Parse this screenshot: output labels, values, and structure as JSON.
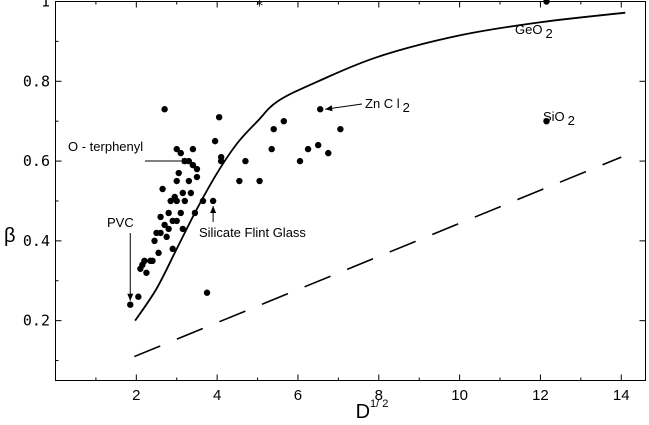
{
  "chart_data": {
    "type": "scatter",
    "title": "",
    "xlabel": "D^1/2",
    "xlabel_base": "D",
    "xlabel_sup": "1/ 2",
    "ylabel": "β",
    "xlim": [
      0,
      14.6
    ],
    "ylim": [
      0.05,
      1.0
    ],
    "x_ticks": [
      2,
      4,
      6,
      8,
      10,
      12,
      14
    ],
    "y_ticks": [
      0.2,
      0.4,
      0.6,
      0.8,
      1.0
    ],
    "y_tick_labels": [
      "0.2",
      "0.4",
      "0.6",
      "0.8",
      "1"
    ],
    "grid": false,
    "points": [
      {
        "x": 1.85,
        "y": 0.24
      },
      {
        "x": 2.05,
        "y": 0.26
      },
      {
        "x": 2.1,
        "y": 0.33
      },
      {
        "x": 2.15,
        "y": 0.34
      },
      {
        "x": 2.2,
        "y": 0.35
      },
      {
        "x": 2.25,
        "y": 0.32
      },
      {
        "x": 2.35,
        "y": 0.35
      },
      {
        "x": 2.4,
        "y": 0.35
      },
      {
        "x": 2.45,
        "y": 0.4
      },
      {
        "x": 2.5,
        "y": 0.42
      },
      {
        "x": 2.55,
        "y": 0.37
      },
      {
        "x": 2.6,
        "y": 0.42
      },
      {
        "x": 2.6,
        "y": 0.46
      },
      {
        "x": 2.65,
        "y": 0.53
      },
      {
        "x": 2.7,
        "y": 0.73
      },
      {
        "x": 2.7,
        "y": 0.44
      },
      {
        "x": 2.75,
        "y": 0.41
      },
      {
        "x": 2.8,
        "y": 0.43
      },
      {
        "x": 2.8,
        "y": 0.47
      },
      {
        "x": 2.85,
        "y": 0.5
      },
      {
        "x": 2.9,
        "y": 0.38
      },
      {
        "x": 2.9,
        "y": 0.45
      },
      {
        "x": 2.95,
        "y": 0.51
      },
      {
        "x": 3.0,
        "y": 0.45
      },
      {
        "x": 3.0,
        "y": 0.5
      },
      {
        "x": 3.0,
        "y": 0.55
      },
      {
        "x": 3.0,
        "y": 0.63
      },
      {
        "x": 3.05,
        "y": 0.57
      },
      {
        "x": 3.1,
        "y": 0.62
      },
      {
        "x": 3.1,
        "y": 0.47
      },
      {
        "x": 3.15,
        "y": 0.52
      },
      {
        "x": 3.15,
        "y": 0.43
      },
      {
        "x": 3.2,
        "y": 0.5
      },
      {
        "x": 3.2,
        "y": 0.6
      },
      {
        "x": 3.3,
        "y": 0.55
      },
      {
        "x": 3.3,
        "y": 0.6
      },
      {
        "x": 3.35,
        "y": 0.52
      },
      {
        "x": 3.4,
        "y": 0.59
      },
      {
        "x": 3.4,
        "y": 0.63
      },
      {
        "x": 3.45,
        "y": 0.47
      },
      {
        "x": 3.5,
        "y": 0.56
      },
      {
        "x": 3.5,
        "y": 0.58
      },
      {
        "x": 3.65,
        "y": 0.5
      },
      {
        "x": 3.75,
        "y": 0.27
      },
      {
        "x": 3.9,
        "y": 0.5
      },
      {
        "x": 3.95,
        "y": 0.65
      },
      {
        "x": 4.05,
        "y": 0.71
      },
      {
        "x": 4.1,
        "y": 0.6
      },
      {
        "x": 4.1,
        "y": 0.61
      },
      {
        "x": 4.55,
        "y": 0.55
      },
      {
        "x": 4.7,
        "y": 0.6
      },
      {
        "x": 5.05,
        "y": 0.55
      },
      {
        "x": 5.35,
        "y": 0.63
      },
      {
        "x": 5.4,
        "y": 0.68
      },
      {
        "x": 5.65,
        "y": 0.7
      },
      {
        "x": 6.05,
        "y": 0.6
      },
      {
        "x": 6.25,
        "y": 0.63
      },
      {
        "x": 6.5,
        "y": 0.64
      },
      {
        "x": 6.55,
        "y": 0.73
      },
      {
        "x": 6.75,
        "y": 0.62
      },
      {
        "x": 7.05,
        "y": 0.68
      },
      {
        "x": 12.15,
        "y": 0.7
      },
      {
        "x": 12.15,
        "y": 1.0
      }
    ],
    "solid_curve": [
      {
        "x": 1.97,
        "y": 0.2
      },
      {
        "x": 2.5,
        "y": 0.28
      },
      {
        "x": 3.0,
        "y": 0.38
      },
      {
        "x": 3.5,
        "y": 0.48
      },
      {
        "x": 4.0,
        "y": 0.57
      },
      {
        "x": 4.5,
        "y": 0.645
      },
      {
        "x": 5.0,
        "y": 0.7
      },
      {
        "x": 5.5,
        "y": 0.75
      },
      {
        "x": 6.5,
        "y": 0.8
      },
      {
        "x": 8.0,
        "y": 0.862
      },
      {
        "x": 10.0,
        "y": 0.915
      },
      {
        "x": 12.0,
        "y": 0.948
      },
      {
        "x": 14.1,
        "y": 0.972
      }
    ],
    "dashed_line": [
      {
        "x": 1.95,
        "y": 0.11
      },
      {
        "x": 14.0,
        "y": 0.61
      }
    ],
    "star_marker": {
      "x": 5.05,
      "y": 1.0
    },
    "annotations": [
      {
        "key": "pvc",
        "text": "PVC",
        "x": 1.85,
        "y": 0.24
      },
      {
        "key": "terphenyl",
        "text": "O - terphenyl",
        "x": 3.4,
        "y": 0.57
      },
      {
        "key": "silicate",
        "text": "Silicate Flint Glass",
        "x": 3.9,
        "y": 0.5
      },
      {
        "key": "zncl2",
        "text": "Zn C l",
        "sub": "2",
        "x": 6.55,
        "y": 0.73
      },
      {
        "key": "geo2",
        "text": "GeO",
        "sub": "2",
        "x": 12.15,
        "y": 1.0
      },
      {
        "key": "sio2",
        "text": "SiO",
        "sub": "2",
        "x": 12.15,
        "y": 0.7
      }
    ]
  }
}
